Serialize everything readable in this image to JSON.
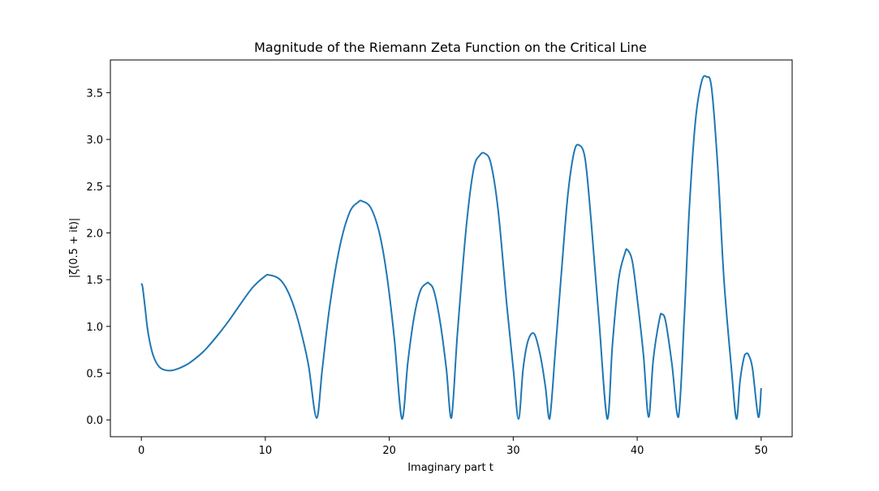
{
  "chart_data": {
    "type": "line",
    "title": "Magnitude of the Riemann Zeta Function on the Critical Line",
    "xlabel": "Imaginary part t",
    "ylabel": "|ζ(0.5 + it)|",
    "xlim": [
      -2.5,
      52.5
    ],
    "ylim": [
      -0.18,
      3.85
    ],
    "xticks": [
      0,
      10,
      20,
      30,
      40,
      50
    ],
    "xtick_labels": [
      "0",
      "10",
      "20",
      "30",
      "40",
      "50"
    ],
    "yticks": [
      0.0,
      0.5,
      1.0,
      1.5,
      2.0,
      2.5,
      3.0,
      3.5
    ],
    "ytick_labels": [
      "0.0",
      "0.5",
      "1.0",
      "1.5",
      "2.0",
      "2.5",
      "3.0",
      "3.5"
    ],
    "grid": false,
    "legend": "none",
    "series": [
      {
        "color": "#1f77b4",
        "x": [
          0,
          0.1,
          0.3,
          0.5,
          0.8,
          1.1,
          1.5,
          2.0,
          2.5,
          3.0,
          3.5,
          4.0,
          5.0,
          6.0,
          7.0,
          8.0,
          9.0,
          10.0,
          10.3,
          11.0,
          11.5,
          12.0,
          12.5,
          13.0,
          13.5,
          14.134725,
          14.6,
          15.2,
          16.0,
          16.8,
          17.5,
          17.8,
          18.5,
          19.2,
          19.8,
          20.4,
          21.02204,
          21.5,
          22.0,
          22.5,
          23.0,
          23.2,
          23.6,
          24.1,
          24.6,
          25.010858,
          25.5,
          26.2,
          26.8,
          27.3,
          27.7,
          28.2,
          28.8,
          29.5,
          30.0,
          30.424876,
          30.8,
          31.2,
          31.7,
          32.2,
          32.6,
          32.935062,
          33.4,
          33.9,
          34.4,
          34.9,
          35.3,
          35.8,
          36.3,
          36.9,
          37.586178,
          38.0,
          38.5,
          39.0,
          39.2,
          39.6,
          40.0,
          40.5,
          40.918719,
          41.3,
          41.8,
          42.0,
          42.3,
          42.8,
          43.327073,
          43.8,
          44.2,
          44.7,
          45.2,
          45.6,
          46.0,
          46.5,
          47.0,
          47.6,
          48.005151,
          48.3,
          48.6,
          48.8,
          49.0,
          49.3,
          49.773832,
          50.0
        ],
        "y": [
          1.46,
          1.42,
          1.2,
          0.97,
          0.76,
          0.64,
          0.56,
          0.53,
          0.53,
          0.55,
          0.58,
          0.62,
          0.73,
          0.88,
          1.05,
          1.24,
          1.42,
          1.54,
          1.55,
          1.52,
          1.45,
          1.32,
          1.13,
          0.88,
          0.57,
          0.02,
          0.55,
          1.22,
          1.85,
          2.22,
          2.33,
          2.34,
          2.27,
          2.0,
          1.55,
          0.88,
          0.01,
          0.62,
          1.1,
          1.38,
          1.46,
          1.46,
          1.38,
          1.05,
          0.55,
          0.02,
          0.93,
          2.05,
          2.68,
          2.83,
          2.85,
          2.74,
          2.22,
          1.2,
          0.55,
          0.01,
          0.55,
          0.85,
          0.92,
          0.68,
          0.35,
          0.01,
          0.75,
          1.6,
          2.4,
          2.86,
          2.94,
          2.79,
          2.1,
          1.1,
          0.01,
          0.8,
          1.5,
          1.78,
          1.82,
          1.7,
          1.3,
          0.7,
          0.03,
          0.65,
          1.08,
          1.13,
          1.05,
          0.6,
          0.03,
          1.1,
          2.25,
          3.2,
          3.62,
          3.67,
          3.55,
          2.7,
          1.5,
          0.55,
          0.01,
          0.42,
          0.66,
          0.71,
          0.69,
          0.55,
          0.03,
          0.34
        ]
      }
    ]
  }
}
